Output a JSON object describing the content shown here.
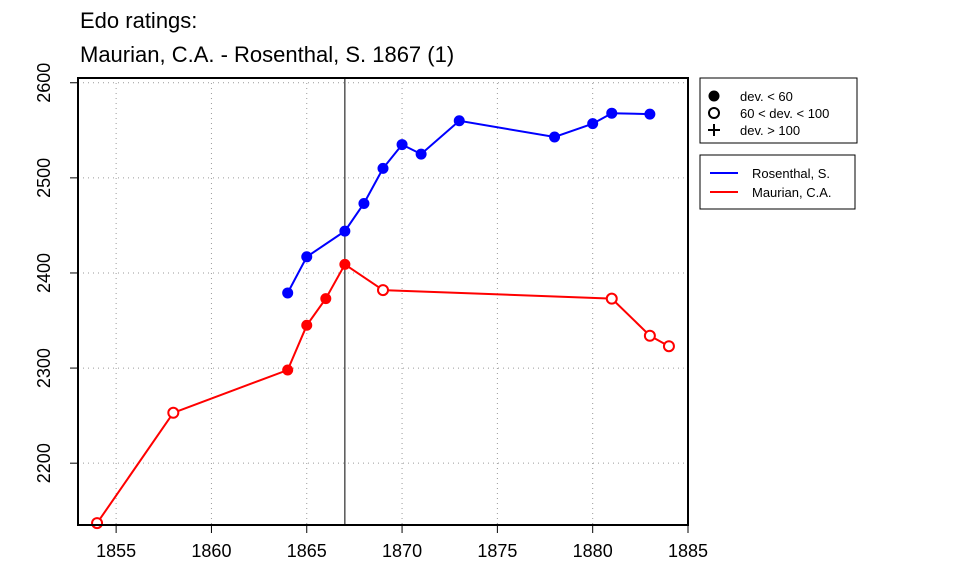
{
  "chart_data": {
    "type": "line",
    "title_line1": "Edo ratings:",
    "title_line2": "Maurian, C.A. - Rosenthal, S. 1867 (1)",
    "xlabel": "",
    "ylabel": "",
    "xlim": [
      1853,
      1885
    ],
    "ylim": [
      2135,
      2605
    ],
    "x_ticks": [
      1855,
      1860,
      1865,
      1870,
      1875,
      1880,
      1885
    ],
    "y_ticks": [
      2200,
      2300,
      2400,
      2500,
      2600
    ],
    "grid": true,
    "vline_x": 1867,
    "legend_position": "right",
    "deviation_legend": [
      {
        "marker": "filled-circle",
        "label": "dev. < 60"
      },
      {
        "marker": "open-circle",
        "label": "60 < dev. < 100"
      },
      {
        "marker": "plus",
        "label": "dev. > 100"
      }
    ],
    "series": [
      {
        "name": "Rosenthal, S.",
        "color": "#0000ff",
        "points": [
          {
            "x": 1864,
            "y": 2379,
            "marker": "filled-circle"
          },
          {
            "x": 1865,
            "y": 2417,
            "marker": "filled-circle"
          },
          {
            "x": 1867,
            "y": 2444,
            "marker": "filled-circle"
          },
          {
            "x": 1868,
            "y": 2473,
            "marker": "filled-circle"
          },
          {
            "x": 1869,
            "y": 2510,
            "marker": "filled-circle"
          },
          {
            "x": 1870,
            "y": 2535,
            "marker": "filled-circle"
          },
          {
            "x": 1871,
            "y": 2525,
            "marker": "filled-circle"
          },
          {
            "x": 1873,
            "y": 2560,
            "marker": "filled-circle"
          },
          {
            "x": 1878,
            "y": 2543,
            "marker": "filled-circle"
          },
          {
            "x": 1880,
            "y": 2557,
            "marker": "filled-circle"
          },
          {
            "x": 1881,
            "y": 2568,
            "marker": "filled-circle"
          },
          {
            "x": 1883,
            "y": 2567,
            "marker": "filled-circle"
          }
        ]
      },
      {
        "name": "Maurian, C.A.",
        "color": "#ff0000",
        "points": [
          {
            "x": 1854,
            "y": 2137,
            "marker": "open-circle"
          },
          {
            "x": 1858,
            "y": 2253,
            "marker": "open-circle"
          },
          {
            "x": 1864,
            "y": 2298,
            "marker": "filled-circle"
          },
          {
            "x": 1865,
            "y": 2345,
            "marker": "filled-circle"
          },
          {
            "x": 1866,
            "y": 2373,
            "marker": "filled-circle"
          },
          {
            "x": 1867,
            "y": 2409,
            "marker": "filled-circle"
          },
          {
            "x": 1869,
            "y": 2382,
            "marker": "open-circle"
          },
          {
            "x": 1881,
            "y": 2373,
            "marker": "open-circle"
          },
          {
            "x": 1883,
            "y": 2334,
            "marker": "open-circle"
          },
          {
            "x": 1884,
            "y": 2323,
            "marker": "open-circle"
          }
        ]
      }
    ]
  }
}
